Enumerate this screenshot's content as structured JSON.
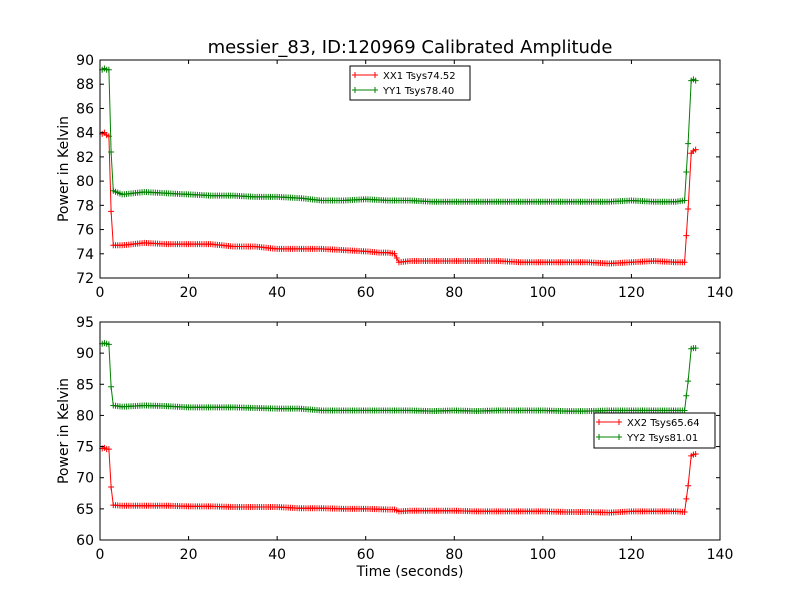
{
  "figure": {
    "title": "messier_83, ID:120969 Calibrated Amplitude"
  },
  "chart_data": [
    {
      "type": "line",
      "title": "messier_83, ID:120969 Calibrated Amplitude",
      "xlabel": "",
      "ylabel": "Power in Kelvin",
      "xlim": [
        0,
        140
      ],
      "ylim": [
        72,
        90
      ],
      "xticks": [
        0,
        20,
        40,
        60,
        80,
        100,
        120,
        140
      ],
      "yticks": [
        72,
        74,
        76,
        78,
        80,
        82,
        84,
        86,
        88,
        90
      ],
      "grid": false,
      "legend": "top-center",
      "series": [
        {
          "name": "XX1 Tsys74.52",
          "color": "#ff0000",
          "marker": "+",
          "x": [
            0.5,
            1,
            1.5,
            2,
            2.5,
            3,
            5,
            10,
            15,
            20,
            25,
            30,
            35,
            40,
            45,
            50,
            55,
            60,
            63,
            65,
            66.5,
            67.5,
            70,
            75,
            80,
            85,
            90,
            95,
            100,
            105,
            110,
            115,
            120,
            125,
            130,
            132,
            132.8,
            133.5,
            134,
            134.5
          ],
          "y": [
            83.9,
            84,
            83.8,
            83.7,
            77.5,
            74.7,
            74.7,
            74.9,
            74.8,
            74.8,
            74.8,
            74.6,
            74.6,
            74.4,
            74.4,
            74.4,
            74.3,
            74.2,
            74.1,
            74.1,
            74.0,
            73.3,
            73.4,
            73.4,
            73.4,
            73.4,
            73.4,
            73.3,
            73.3,
            73.3,
            73.3,
            73.2,
            73.3,
            73.4,
            73.3,
            73.3,
            77.7,
            82.3,
            82.5,
            82.6
          ]
        },
        {
          "name": "YY1 Tsys78.40",
          "color": "#008000",
          "marker": "+",
          "x": [
            0.5,
            1,
            1.5,
            2,
            2.5,
            3,
            5,
            10,
            15,
            20,
            25,
            30,
            35,
            40,
            45,
            50,
            55,
            60,
            65,
            70,
            75,
            80,
            85,
            90,
            95,
            100,
            105,
            110,
            115,
            120,
            125,
            130,
            132,
            132.8,
            133.5,
            134,
            134.5
          ],
          "y": [
            89.2,
            89.3,
            89.2,
            89.2,
            82.4,
            79.2,
            78.9,
            79.1,
            79.0,
            78.9,
            78.8,
            78.8,
            78.7,
            78.7,
            78.6,
            78.4,
            78.4,
            78.5,
            78.4,
            78.4,
            78.3,
            78.3,
            78.3,
            78.3,
            78.3,
            78.3,
            78.3,
            78.3,
            78.3,
            78.4,
            78.3,
            78.3,
            78.4,
            83.1,
            88.3,
            88.4,
            88.3
          ]
        }
      ]
    },
    {
      "type": "line",
      "title": "",
      "xlabel": "Time (seconds)",
      "ylabel": "Power in Kelvin",
      "xlim": [
        0,
        140
      ],
      "ylim": [
        60,
        95
      ],
      "xticks": [
        0,
        20,
        40,
        60,
        80,
        100,
        120,
        140
      ],
      "yticks": [
        60,
        65,
        70,
        75,
        80,
        85,
        90,
        95
      ],
      "grid": false,
      "legend": "center-right",
      "series": [
        {
          "name": "XX2 Tsys65.64",
          "color": "#ff0000",
          "marker": "+",
          "x": [
            0.5,
            1,
            1.5,
            2,
            2.5,
            3,
            5,
            10,
            15,
            20,
            25,
            30,
            35,
            40,
            45,
            50,
            55,
            60,
            65,
            66.5,
            67.5,
            70,
            75,
            80,
            85,
            90,
            95,
            100,
            105,
            110,
            115,
            120,
            125,
            130,
            132,
            132.8,
            133.5,
            134,
            134.5
          ],
          "y": [
            74.7,
            74.8,
            74.6,
            74.6,
            68.5,
            65.6,
            65.5,
            65.5,
            65.5,
            65.4,
            65.4,
            65.3,
            65.3,
            65.3,
            65.1,
            65.1,
            65.0,
            65.0,
            64.9,
            64.9,
            64.6,
            64.7,
            64.7,
            64.7,
            64.6,
            64.6,
            64.6,
            64.6,
            64.5,
            64.5,
            64.4,
            64.6,
            64.6,
            64.6,
            64.5,
            68.7,
            73.5,
            73.7,
            73.8
          ]
        },
        {
          "name": "YY2 Tsys81.01",
          "color": "#008000",
          "marker": "+",
          "x": [
            0.5,
            1,
            1.5,
            2,
            2.5,
            3,
            5,
            10,
            15,
            20,
            25,
            30,
            35,
            40,
            45,
            50,
            55,
            60,
            65,
            70,
            75,
            80,
            85,
            90,
            95,
            100,
            105,
            110,
            115,
            120,
            125,
            130,
            132,
            132.8,
            133.5,
            134,
            134.5
          ],
          "y": [
            91.5,
            91.6,
            91.5,
            91.4,
            84.6,
            81.6,
            81.4,
            81.6,
            81.5,
            81.3,
            81.3,
            81.3,
            81.2,
            81.1,
            81.1,
            80.8,
            80.8,
            80.8,
            80.8,
            80.8,
            80.7,
            80.8,
            80.7,
            80.8,
            80.8,
            80.8,
            80.7,
            80.7,
            80.8,
            80.8,
            80.8,
            80.8,
            80.8,
            85.5,
            90.7,
            90.8,
            90.8
          ]
        }
      ]
    }
  ]
}
